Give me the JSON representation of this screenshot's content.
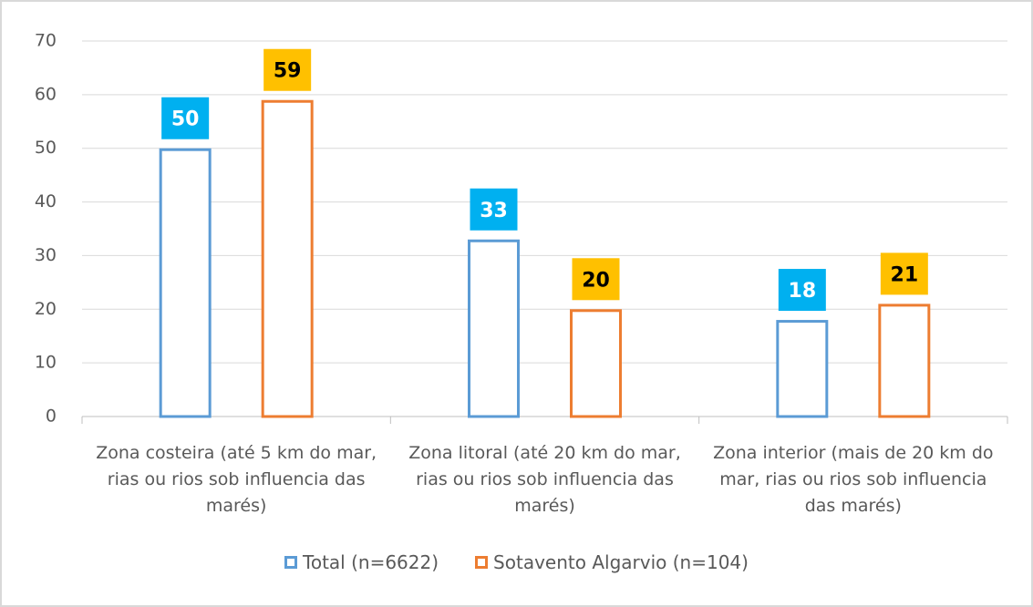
{
  "chart_data": {
    "type": "bar",
    "categories": [
      "Zona costeira (até 5 km do mar, rias ou rios sob influencia das marés)",
      "Zona litoral (até 20 km do mar, rias ou rios sob influencia das marés)",
      "Zona interior (mais de 20 km do mar, rias ou rios sob influencia das marés)"
    ],
    "series": [
      {
        "name": "Total (n=6622)",
        "color": "#5b9bd5",
        "label_color": "#00b0f0",
        "values": [
          50,
          33,
          18
        ]
      },
      {
        "name": "Sotavento Algarvio (n=104)",
        "color": "#ed7d31",
        "label_color": "#ffc000",
        "values": [
          59,
          20,
          21
        ]
      }
    ],
    "ylim": [
      0,
      70
    ],
    "yticks": [
      0,
      10,
      20,
      30,
      40,
      50,
      60,
      70
    ],
    "grid": true,
    "legend": "bottom"
  }
}
